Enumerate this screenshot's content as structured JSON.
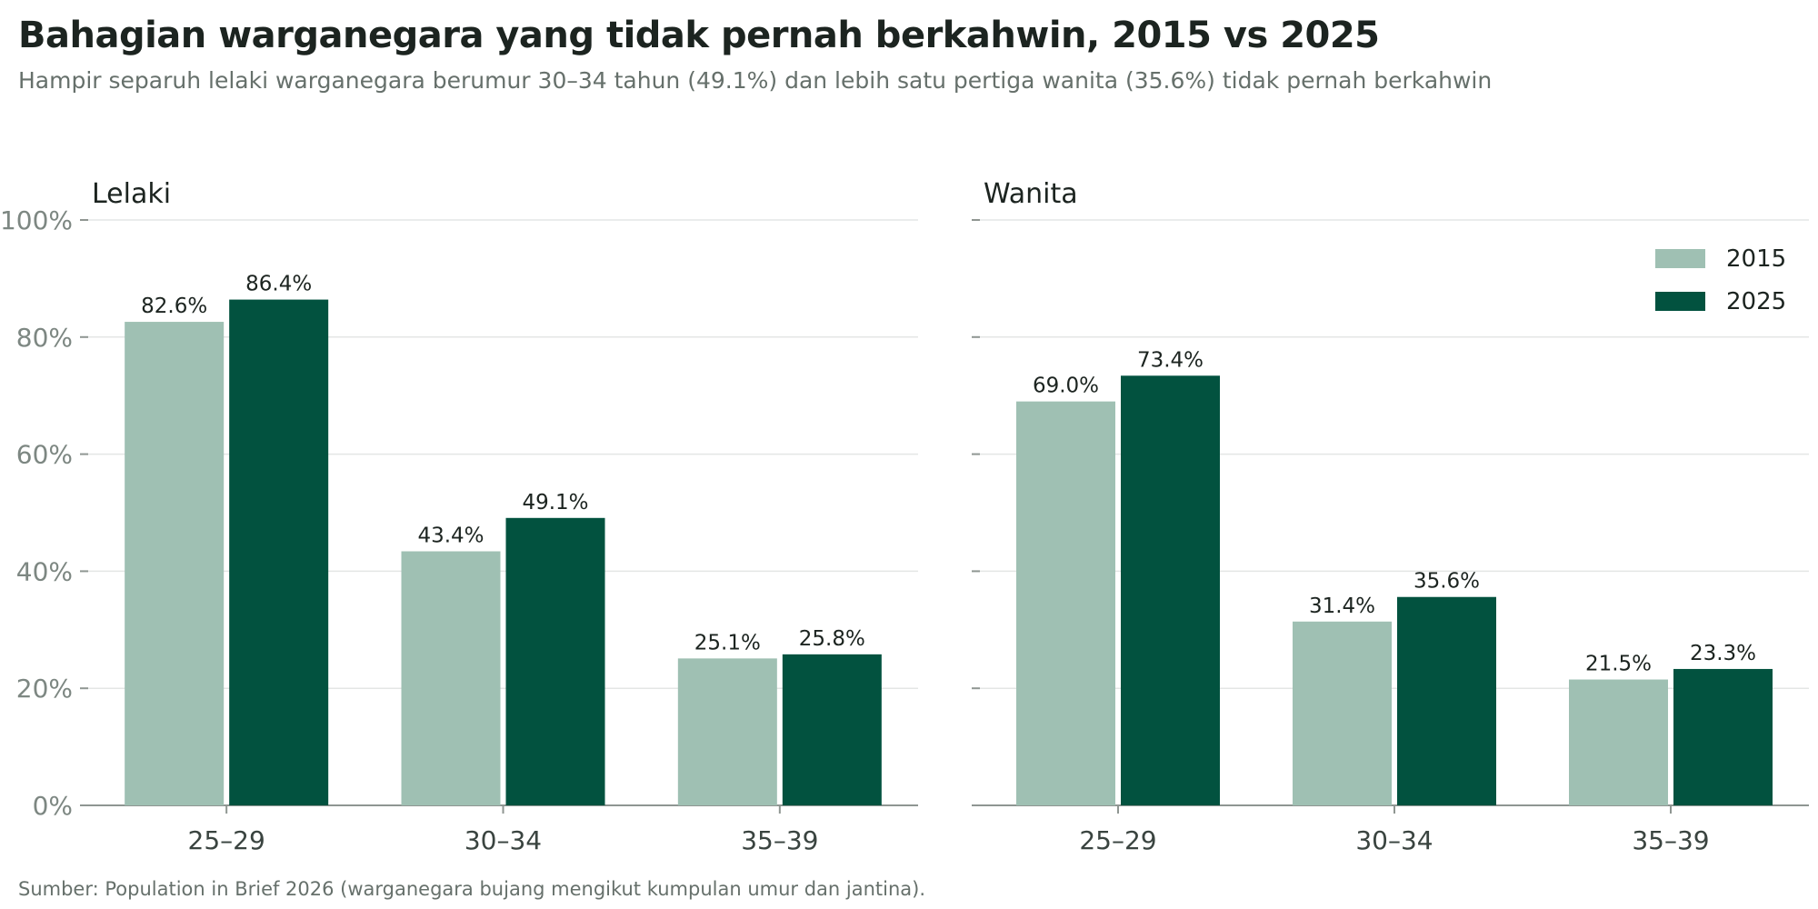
{
  "title": "Bahagian warganegara yang tidak pernah berkahwin, 2015 vs 2025",
  "subtitle": "Hampir separuh lelaki warganegara berumur 30–34 tahun (49.1%) dan lebih satu pertiga wanita (35.6%) tidak pernah berkahwin",
  "source": "Sumber: Population in Brief 2026 (warganegara bujang mengikut kumpulan umur dan jantina).",
  "colors": {
    "series_2015": "#9fc0b3",
    "series_2025": "#02523f",
    "grid": "#e4e6e5",
    "axis": "#8f9692"
  },
  "chart_data": [
    {
      "type": "bar",
      "panel": "Lelaki",
      "title": "Lelaki",
      "categories": [
        "25–29",
        "30–34",
        "35–39"
      ],
      "series": [
        {
          "name": "2015",
          "values": [
            82.6,
            43.4,
            25.1
          ],
          "labels": [
            "82.6%",
            "43.4%",
            "25.1%"
          ]
        },
        {
          "name": "2025",
          "values": [
            86.4,
            49.1,
            25.8
          ],
          "labels": [
            "86.4%",
            "49.1%",
            "25.8%"
          ]
        }
      ],
      "ylim": [
        0,
        100
      ],
      "yticks": [
        "0%",
        "20%",
        "40%",
        "60%",
        "80%",
        "100%"
      ],
      "grid": true,
      "xlabel": "",
      "ylabel": ""
    },
    {
      "type": "bar",
      "panel": "Wanita",
      "title": "Wanita",
      "categories": [
        "25–29",
        "30–34",
        "35–39"
      ],
      "series": [
        {
          "name": "2015",
          "values": [
            69.0,
            31.4,
            21.5
          ],
          "labels": [
            "69.0%",
            "31.4%",
            "21.5%"
          ]
        },
        {
          "name": "2025",
          "values": [
            73.4,
            35.6,
            23.3
          ],
          "labels": [
            "73.4%",
            "35.6%",
            "23.3%"
          ]
        }
      ],
      "ylim": [
        0,
        100
      ],
      "grid": true,
      "legend": {
        "placement": "top-right",
        "entries": [
          "2015",
          "2025"
        ]
      },
      "xlabel": "",
      "ylabel": ""
    }
  ]
}
